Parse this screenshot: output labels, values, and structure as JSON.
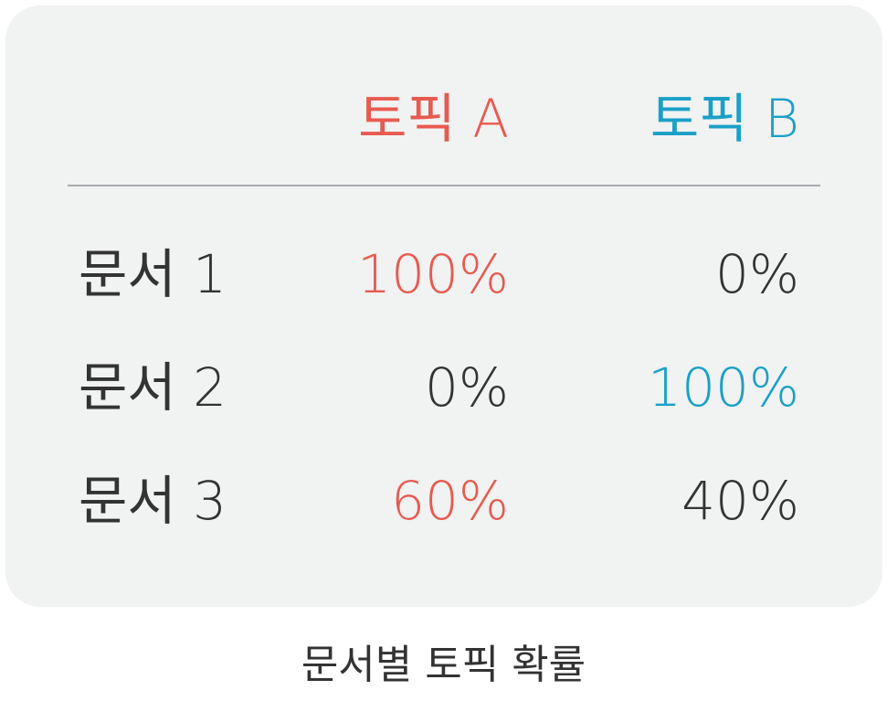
{
  "columns": [
    {
      "label": "토픽 A",
      "color": "#e85a4f"
    },
    {
      "label": "토픽 B",
      "color": "#1aa0c8"
    }
  ],
  "rows": [
    {
      "label": "문서 1",
      "a": "100%",
      "b": "0%",
      "a_color": "#e85a4f",
      "b_color": "#333333"
    },
    {
      "label": "문서 2",
      "a": "0%",
      "b": "100%",
      "a_color": "#333333",
      "b_color": "#1aa0c8"
    },
    {
      "label": "문서 3",
      "a": "60%",
      "b": "40%",
      "a_color": "#e85a4f",
      "b_color": "#333333"
    }
  ],
  "caption": "문서별 토픽 확률"
}
